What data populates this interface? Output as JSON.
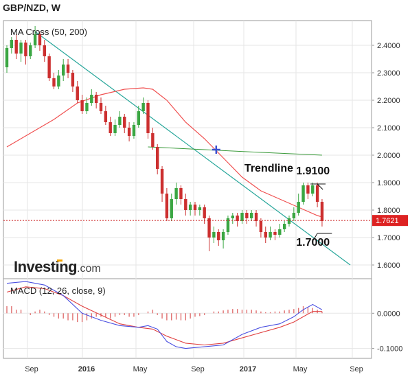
{
  "chart_data": [
    {
      "type": "candlestick",
      "title": "GBP/NZD, W",
      "legend": "MA Cross (50, 200)",
      "watermark": "Investing",
      "watermark_suffix": ".com",
      "ylim": [
        1.55,
        2.49
      ],
      "y_ticks": [
        1.6,
        1.7,
        1.8,
        1.9,
        2.0,
        2.1,
        2.2,
        2.3,
        2.4
      ],
      "y_tick_labels": [
        "1.6000",
        "1.7000",
        "1.8000",
        "1.9000",
        "2.0000",
        "2.1000",
        "2.2000",
        "2.3000",
        "2.4000"
      ],
      "x_tick_labels": [
        "Sep",
        "2016",
        "May",
        "Sep",
        "2017",
        "May",
        "Sep"
      ],
      "current_price": 1.7621,
      "current_price_label": "1.7621",
      "candles": [
        [
          2.32,
          2.39,
          2.4,
          2.3
        ],
        [
          2.39,
          2.42,
          2.43,
          2.37
        ],
        [
          2.42,
          2.37,
          2.44,
          2.35
        ],
        [
          2.37,
          2.41,
          2.42,
          2.34
        ],
        [
          2.41,
          2.36,
          2.42,
          2.33
        ],
        [
          2.36,
          2.4,
          2.41,
          2.35
        ],
        [
          2.4,
          2.44,
          2.47,
          2.39
        ],
        [
          2.44,
          2.4,
          2.45,
          2.38
        ],
        [
          2.4,
          2.36,
          2.42,
          2.34
        ],
        [
          2.36,
          2.28,
          2.37,
          2.27
        ],
        [
          2.28,
          2.25,
          2.3,
          2.24
        ],
        [
          2.25,
          2.29,
          2.31,
          2.24
        ],
        [
          2.29,
          2.33,
          2.35,
          2.27
        ],
        [
          2.33,
          2.3,
          2.35,
          2.28
        ],
        [
          2.3,
          2.25,
          2.31,
          2.23
        ],
        [
          2.25,
          2.2,
          2.27,
          2.19
        ],
        [
          2.2,
          2.16,
          2.22,
          2.15
        ],
        [
          2.16,
          2.19,
          2.21,
          2.15
        ],
        [
          2.19,
          2.22,
          2.24,
          2.18
        ],
        [
          2.22,
          2.19,
          2.23,
          2.17
        ],
        [
          2.19,
          2.16,
          2.21,
          2.15
        ],
        [
          2.16,
          2.12,
          2.18,
          2.11
        ],
        [
          2.12,
          2.08,
          2.14,
          2.07
        ],
        [
          2.08,
          2.11,
          2.13,
          2.07
        ],
        [
          2.11,
          2.14,
          2.16,
          2.1
        ],
        [
          2.14,
          2.1,
          2.15,
          2.08
        ],
        [
          2.1,
          2.07,
          2.12,
          2.05
        ],
        [
          2.07,
          2.11,
          2.12,
          2.06
        ],
        [
          2.11,
          2.16,
          2.18,
          2.1
        ],
        [
          2.16,
          2.19,
          2.21,
          2.15
        ],
        [
          2.19,
          2.08,
          2.2,
          2.06
        ],
        [
          2.08,
          2.03,
          2.1,
          2.02
        ],
        [
          2.03,
          1.95,
          2.04,
          1.93
        ],
        [
          1.95,
          1.86,
          1.96,
          1.83
        ],
        [
          1.86,
          1.77,
          1.88,
          1.76
        ],
        [
          1.77,
          1.84,
          1.86,
          1.76
        ],
        [
          1.84,
          1.88,
          1.9,
          1.82
        ],
        [
          1.88,
          1.84,
          1.89,
          1.82
        ],
        [
          1.84,
          1.8,
          1.86,
          1.78
        ],
        [
          1.8,
          1.82,
          1.83,
          1.78
        ],
        [
          1.82,
          1.8,
          1.83,
          1.78
        ],
        [
          1.8,
          1.81,
          1.82,
          1.78
        ],
        [
          1.81,
          1.77,
          1.82,
          1.75
        ],
        [
          1.77,
          1.7,
          1.78,
          1.65
        ],
        [
          1.7,
          1.72,
          1.74,
          1.68
        ],
        [
          1.72,
          1.69,
          1.73,
          1.67
        ],
        [
          1.69,
          1.72,
          1.73,
          1.66
        ],
        [
          1.72,
          1.77,
          1.78,
          1.71
        ],
        [
          1.77,
          1.78,
          1.79,
          1.75
        ],
        [
          1.78,
          1.76,
          1.79,
          1.74
        ],
        [
          1.76,
          1.79,
          1.8,
          1.75
        ],
        [
          1.79,
          1.77,
          1.8,
          1.75
        ],
        [
          1.77,
          1.79,
          1.8,
          1.76
        ],
        [
          1.79,
          1.76,
          1.8,
          1.74
        ],
        [
          1.76,
          1.72,
          1.77,
          1.7
        ],
        [
          1.72,
          1.7,
          1.74,
          1.68
        ],
        [
          1.7,
          1.72,
          1.74,
          1.69
        ],
        [
          1.72,
          1.71,
          1.73,
          1.69
        ],
        [
          1.71,
          1.73,
          1.75,
          1.7
        ],
        [
          1.73,
          1.75,
          1.76,
          1.72
        ],
        [
          1.75,
          1.77,
          1.78,
          1.74
        ],
        [
          1.77,
          1.79,
          1.81,
          1.76
        ],
        [
          1.79,
          1.83,
          1.86,
          1.78
        ],
        [
          1.83,
          1.89,
          1.9,
          1.82
        ],
        [
          1.89,
          1.86,
          1.9,
          1.84
        ],
        [
          1.86,
          1.89,
          1.9,
          1.85
        ],
        [
          1.89,
          1.83,
          1.9,
          1.81
        ],
        [
          1.83,
          1.76,
          1.84,
          1.74
        ]
      ],
      "ma_fast": [
        [
          0,
          2.03
        ],
        [
          4,
          2.07
        ],
        [
          10,
          2.13
        ],
        [
          15,
          2.19
        ],
        [
          20,
          2.22
        ],
        [
          25,
          2.24
        ],
        [
          29,
          2.245
        ],
        [
          31,
          2.24
        ],
        [
          34,
          2.2
        ],
        [
          38,
          2.12
        ],
        [
          42,
          2.06
        ],
        [
          46,
          1.99
        ],
        [
          50,
          1.92
        ],
        [
          54,
          1.87
        ],
        [
          58,
          1.84
        ],
        [
          62,
          1.81
        ],
        [
          66,
          1.78
        ],
        [
          67,
          1.775
        ]
      ],
      "ma_slow": [
        [
          30,
          2.03
        ],
        [
          42,
          2.02
        ],
        [
          54,
          2.01
        ],
        [
          67,
          2.0
        ]
      ],
      "cross_marker": [
        44.5,
        2.02
      ],
      "trendline": [
        [
          6,
          2.45
        ],
        [
          73,
          1.6
        ]
      ],
      "annotations": [
        {
          "text": "Trendline",
          "x": 50.5,
          "y": 1.94
        },
        {
          "text": "1.9100",
          "x": 61.5,
          "y": 1.93,
          "line_to": [
            66,
            1.895
          ]
        },
        {
          "text": "1.7000",
          "x": 61.5,
          "y": 1.67,
          "line_to": [
            66,
            1.715
          ]
        }
      ]
    },
    {
      "type": "macd",
      "legend": "MACD (12, 26, close, 9)",
      "ylim": [
        -0.128,
        0.098
      ],
      "y_ticks": [
        0.0,
        -0.1
      ],
      "y_tick_labels": [
        "0.0000",
        "-0.1000"
      ],
      "histogram": [
        0.02,
        0.02,
        0.01,
        0.01,
        0.0,
        -0.005,
        0.005,
        0.01,
        0.005,
        -0.005,
        -0.01,
        -0.015,
        -0.015,
        -0.02,
        -0.02,
        -0.025,
        -0.025,
        -0.02,
        -0.015,
        -0.01,
        -0.01,
        -0.01,
        -0.015,
        -0.01,
        -0.005,
        -0.005,
        -0.01,
        -0.01,
        -0.005,
        0.0,
        0.005,
        0.01,
        -0.005,
        -0.015,
        -0.02,
        -0.02,
        -0.018,
        -0.02,
        -0.02,
        -0.015,
        -0.01,
        -0.008,
        -0.005,
        0.0,
        0.005,
        0.005,
        0.008,
        0.01,
        0.012,
        0.012,
        0.01,
        0.01,
        0.01,
        0.008,
        0.005,
        0.003,
        0.003,
        0.005,
        0.005,
        0.008,
        0.01,
        0.012,
        0.015,
        0.02,
        0.018,
        0.015,
        0.01,
        0.005
      ],
      "macd_line": [
        [
          0,
          0.085
        ],
        [
          4,
          0.09
        ],
        [
          8,
          0.08
        ],
        [
          12,
          0.05
        ],
        [
          16,
          0.0
        ],
        [
          20,
          -0.02
        ],
        [
          24,
          -0.035
        ],
        [
          28,
          -0.04
        ],
        [
          30,
          -0.035
        ],
        [
          32,
          -0.045
        ],
        [
          34,
          -0.08
        ],
        [
          36,
          -0.095
        ],
        [
          38,
          -0.1
        ],
        [
          42,
          -0.095
        ],
        [
          46,
          -0.09
        ],
        [
          50,
          -0.06
        ],
        [
          54,
          -0.04
        ],
        [
          58,
          -0.03
        ],
        [
          61,
          -0.01
        ],
        [
          63,
          0.01
        ],
        [
          65,
          0.025
        ],
        [
          67,
          0.01
        ]
      ],
      "signal_line": [
        [
          0,
          0.06
        ],
        [
          4,
          0.075
        ],
        [
          8,
          0.07
        ],
        [
          12,
          0.05
        ],
        [
          16,
          0.02
        ],
        [
          20,
          -0.005
        ],
        [
          24,
          -0.03
        ],
        [
          28,
          -0.04
        ],
        [
          31,
          -0.045
        ],
        [
          34,
          -0.065
        ],
        [
          38,
          -0.085
        ],
        [
          42,
          -0.09
        ],
        [
          46,
          -0.085
        ],
        [
          50,
          -0.07
        ],
        [
          54,
          -0.055
        ],
        [
          58,
          -0.04
        ],
        [
          61,
          -0.025
        ],
        [
          63,
          -0.01
        ],
        [
          65,
          0.005
        ],
        [
          67,
          0.005
        ]
      ]
    }
  ]
}
